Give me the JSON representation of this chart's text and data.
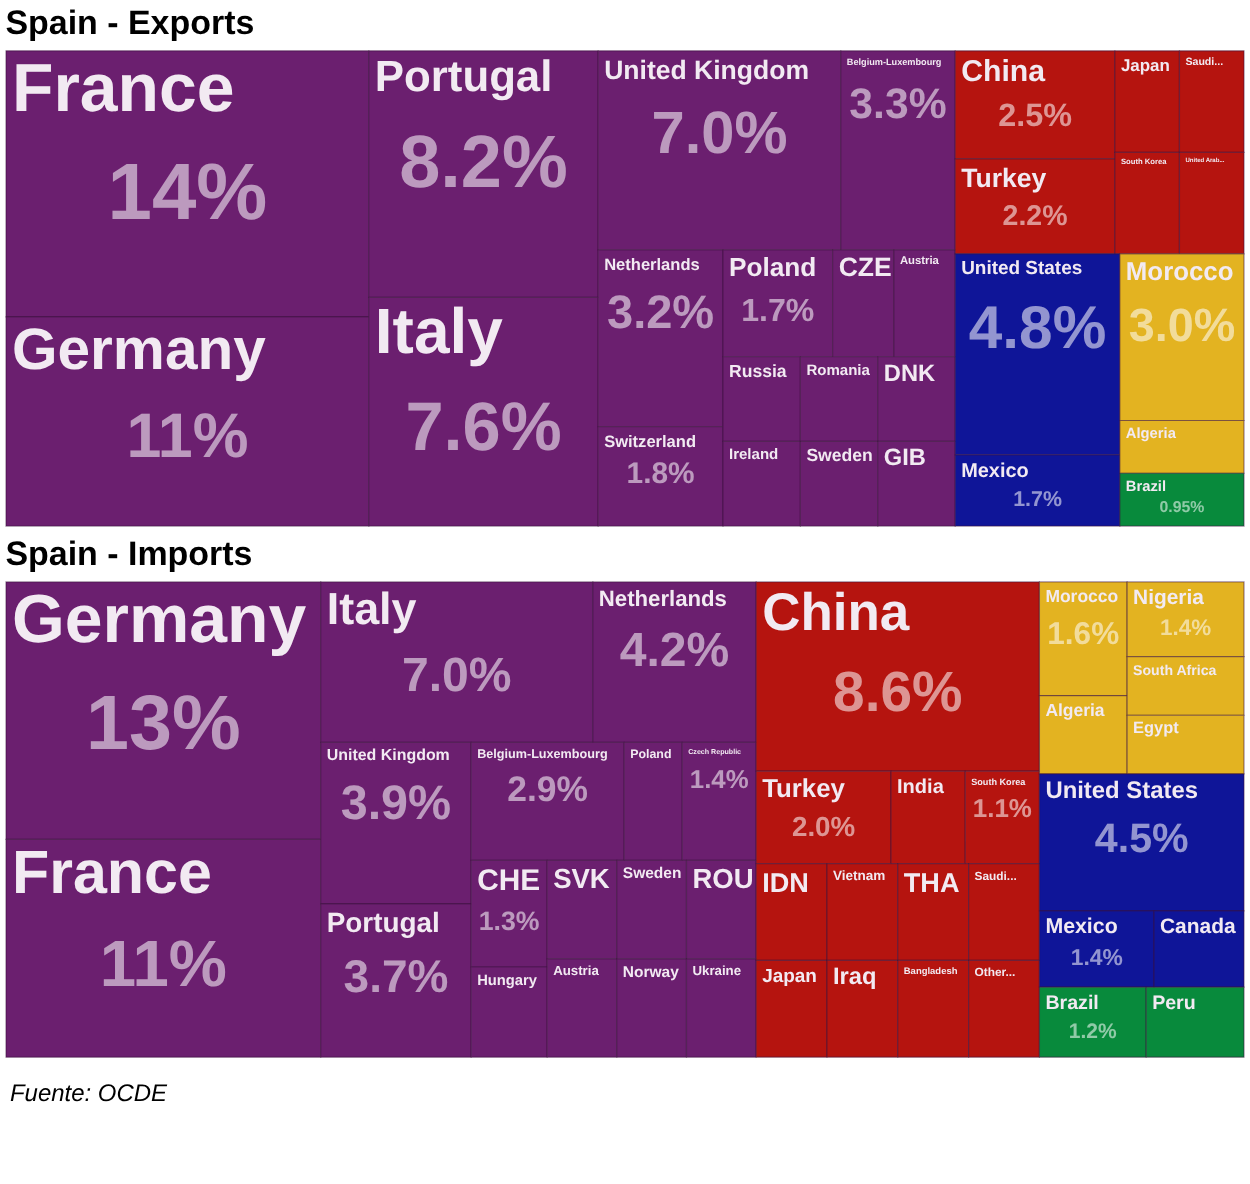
{
  "chart_data": [
    {
      "type": "other",
      "title": "Spain - Exports",
      "categories": [
        "France",
        "Germany",
        "Portugal",
        "Italy",
        "United Kingdom",
        "Belgium-Luxembourg",
        "Netherlands",
        "Switzerland",
        "Poland",
        "CZE",
        "Austria",
        "Russia",
        "Ireland",
        "Romania",
        "DNK",
        "Sweden",
        "GIB",
        "China",
        "Turkey",
        "Japan",
        "Saudi...",
        "South Korea",
        "United Arab...",
        "United States",
        "Mexico",
        "Morocco",
        "Algeria",
        "Brazil"
      ],
      "values": [
        14,
        11,
        8.2,
        7.6,
        7.0,
        3.3,
        3.2,
        1.8,
        1.7,
        null,
        null,
        null,
        null,
        null,
        null,
        null,
        null,
        2.5,
        2.2,
        null,
        null,
        null,
        null,
        4.8,
        1.7,
        3.0,
        null,
        0.95
      ],
      "value_labels": [
        "14%",
        "11%",
        "8.2%",
        "7.6%",
        "7.0%",
        "3.3%",
        "3.2%",
        "1.8%",
        "1.7%",
        null,
        null,
        null,
        null,
        null,
        null,
        null,
        null,
        "2.5%",
        "2.2%",
        null,
        null,
        null,
        null,
        "4.8%",
        "1.7%",
        "3.0%",
        null,
        "0.95%"
      ],
      "colors": [
        "#6b1f6f",
        "#6b1f6f",
        "#6b1f6f",
        "#6b1f6f",
        "#6b1f6f",
        "#6b1f6f",
        "#6b1f6f",
        "#6b1f6f",
        "#6b1f6f",
        "#6b1f6f",
        "#6b1f6f",
        "#6b1f6f",
        "#6b1f6f",
        "#6b1f6f",
        "#6b1f6f",
        "#6b1f6f",
        "#6b1f6f",
        "#b5140f",
        "#b5140f",
        "#b5140f",
        "#b5140f",
        "#b5140f",
        "#b5140f",
        "#0f1598",
        "#0f1598",
        "#e3b321",
        "#e3b321",
        "#088a3c"
      ]
    },
    {
      "type": "other",
      "title": "Spain - Imports",
      "categories": [
        "Germany",
        "France",
        "Italy",
        "Netherlands",
        "United Kingdom",
        "Portugal",
        "Belgium-Luxembourg",
        "Poland",
        "Czech Republic",
        "CHE",
        "Hungary",
        "SVK",
        "Austria",
        "Sweden",
        "ROU",
        "Norway",
        "Ukraine",
        "China",
        "Turkey",
        "India",
        "South Korea",
        "IDN",
        "Japan",
        "Vietnam",
        "Iraq",
        "THA",
        "Saudi...",
        "Bangladesh",
        "Other...",
        "Morocco",
        "Algeria",
        "Nigeria",
        "South Africa",
        "Egypt",
        "United States",
        "Mexico",
        "Canada",
        "Brazil",
        "Peru"
      ],
      "values": [
        13,
        11,
        7.0,
        4.2,
        3.9,
        3.7,
        2.9,
        null,
        1.4,
        1.3,
        null,
        null,
        null,
        null,
        null,
        null,
        null,
        8.6,
        2.0,
        null,
        1.1,
        null,
        null,
        null,
        null,
        null,
        null,
        null,
        null,
        1.6,
        null,
        1.4,
        null,
        null,
        4.5,
        1.4,
        null,
        1.2,
        null
      ],
      "value_labels": [
        "13%",
        "11%",
        "7.0%",
        "4.2%",
        "3.9%",
        "3.7%",
        "2.9%",
        null,
        "1.4%",
        "1.3%",
        null,
        null,
        null,
        null,
        null,
        null,
        null,
        "8.6%",
        "2.0%",
        null,
        "1.1%",
        null,
        null,
        null,
        null,
        null,
        null,
        null,
        null,
        "1.6%",
        null,
        "1.4%",
        null,
        null,
        "4.5%",
        "1.4%",
        null,
        "1.2%",
        null
      ],
      "colors": [
        "#6b1f6f",
        "#6b1f6f",
        "#6b1f6f",
        "#6b1f6f",
        "#6b1f6f",
        "#6b1f6f",
        "#6b1f6f",
        "#6b1f6f",
        "#6b1f6f",
        "#6b1f6f",
        "#6b1f6f",
        "#6b1f6f",
        "#6b1f6f",
        "#6b1f6f",
        "#6b1f6f",
        "#6b1f6f",
        "#6b1f6f",
        "#b5140f",
        "#b5140f",
        "#b5140f",
        "#b5140f",
        "#b5140f",
        "#b5140f",
        "#b5140f",
        "#b5140f",
        "#b5140f",
        "#b5140f",
        "#b5140f",
        "#b5140f",
        "#e3b321",
        "#e3b321",
        "#e3b321",
        "#e3b321",
        "#e3b321",
        "#0f1598",
        "#0f1598",
        "#0f1598",
        "#088a3c",
        "#088a3c"
      ],
      "annotations": [
        "Fuente: OCDE"
      ]
    }
  ]
}
